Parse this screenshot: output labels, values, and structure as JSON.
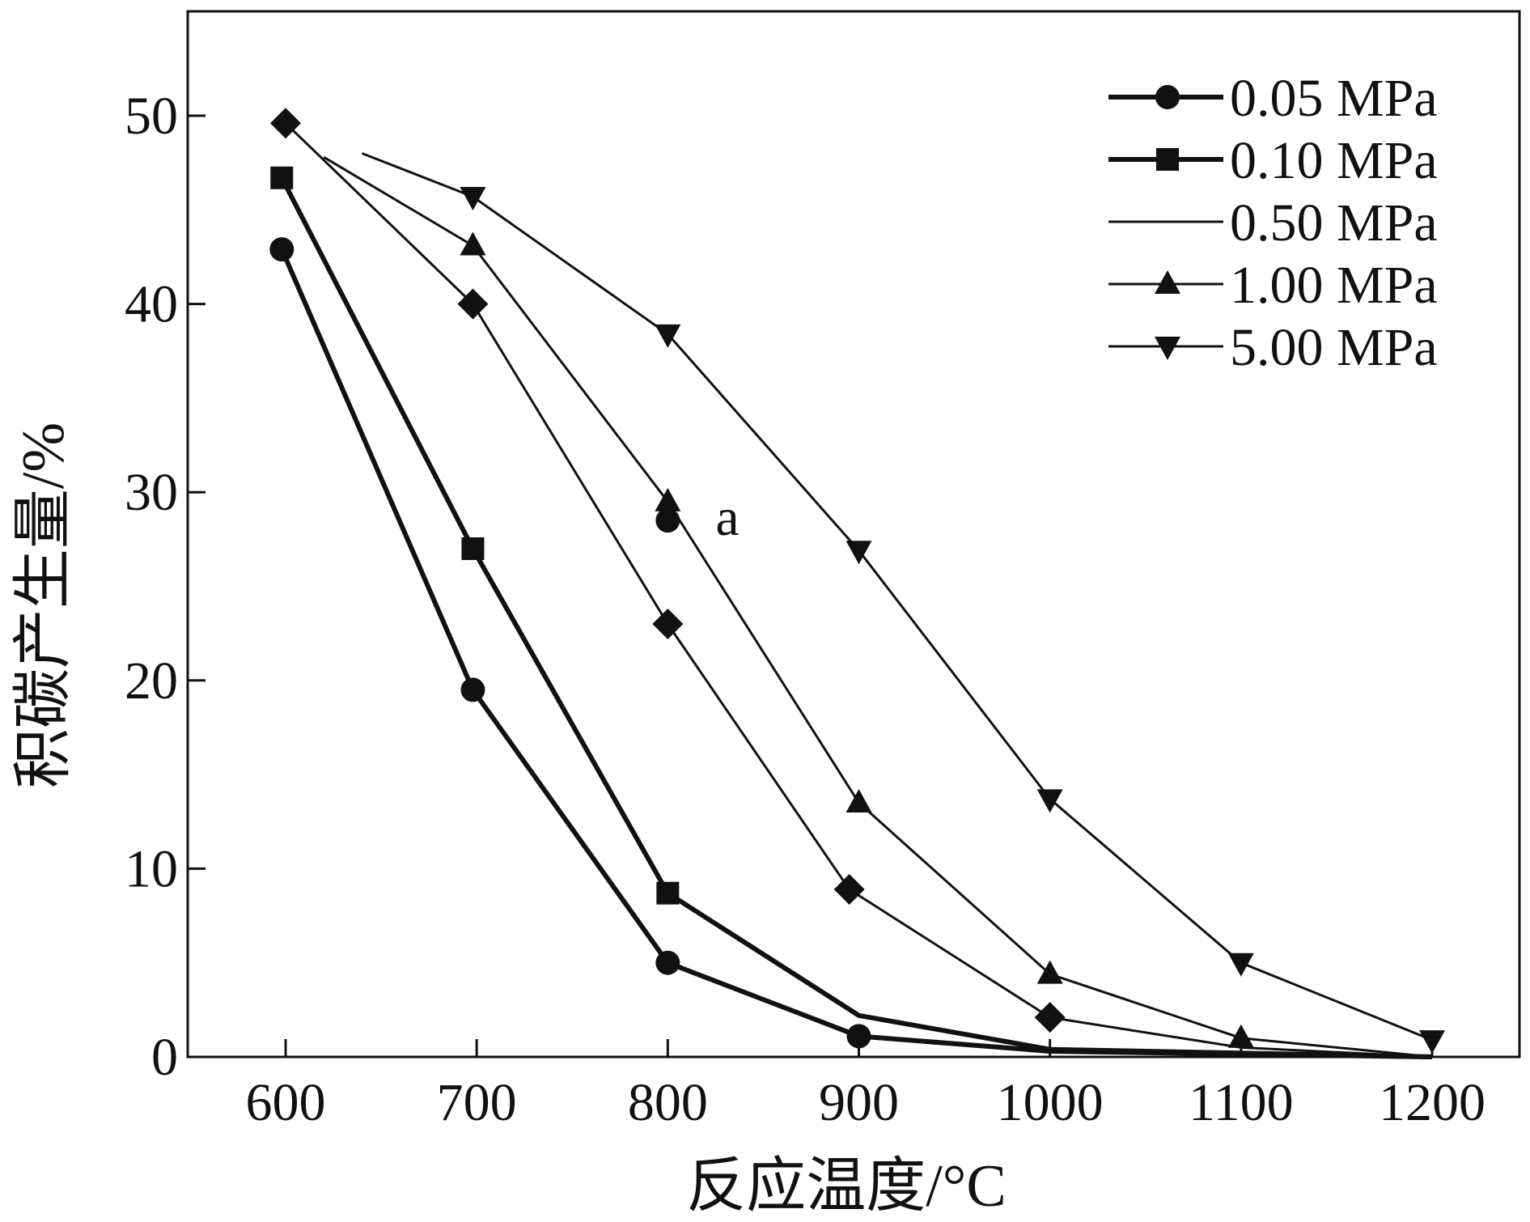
{
  "chart_data": {
    "type": "line",
    "title": "",
    "xlabel": "反应温度/°C",
    "ylabel": "积碳产生量/%",
    "xlim": [
      550,
      1250
    ],
    "ylim": [
      0,
      55
    ],
    "xticks": [
      600,
      700,
      800,
      900,
      1000,
      1100,
      1200
    ],
    "yticks": [
      0,
      10,
      20,
      30,
      40,
      50
    ],
    "x_tick_labels": [
      "600",
      "700",
      "800",
      "900",
      "1000",
      "1100",
      "1200"
    ],
    "y_tick_labels": [
      "0",
      "10",
      "20",
      "30",
      "40",
      "50"
    ],
    "grid": false,
    "legend_position": "top-right",
    "annotations": [
      {
        "text": "a",
        "x": 825,
        "y": 28.5
      }
    ],
    "series": [
      {
        "name": "0.05 MPa",
        "marker": "circle",
        "line_width": 6,
        "x": [
          598,
          698,
          800,
          900,
          1000,
          1200
        ],
        "y": [
          42.9,
          19.5,
          5.0,
          1.1,
          0.3,
          0.0
        ],
        "marker_x": [
          598,
          698,
          800,
          900
        ]
      },
      {
        "name": "0.10 MPa",
        "marker": "square",
        "line_width": 6,
        "x": [
          598,
          698,
          800,
          900,
          1000,
          1200
        ],
        "y": [
          46.7,
          27.0,
          8.7,
          2.2,
          0.4,
          0.0
        ],
        "marker_x": [
          598,
          698,
          800
        ]
      },
      {
        "name": "0.50 MPa",
        "marker": "diamond",
        "line_width": 3,
        "x": [
          600,
          698,
          800,
          895,
          1000,
          1100,
          1200
        ],
        "y": [
          49.6,
          40.0,
          23.0,
          8.9,
          2.1,
          0.5,
          0.0
        ],
        "marker_x": [
          600,
          698,
          800,
          895,
          1000
        ]
      },
      {
        "name": "1.00 MPa",
        "marker": "triangle-up",
        "line_width": 3,
        "x": [
          620,
          698,
          800,
          900,
          1000,
          1100,
          1200
        ],
        "y": [
          47.8,
          43.1,
          29.5,
          13.5,
          4.4,
          1.0,
          0.0
        ],
        "marker_x": [
          698,
          800,
          900,
          1000,
          1100
        ]
      },
      {
        "name": "5.00 MPa",
        "marker": "triangle-down",
        "line_width": 3,
        "x": [
          640,
          698,
          800,
          900,
          1000,
          1100,
          1200
        ],
        "y": [
          48.0,
          45.7,
          38.4,
          26.9,
          13.7,
          5.0,
          0.9
        ],
        "marker_x": [
          698,
          800,
          900,
          1000,
          1100,
          1200
        ]
      }
    ],
    "extra_points": [
      {
        "marker": "circle",
        "x": 800,
        "y": 28.5
      }
    ]
  }
}
